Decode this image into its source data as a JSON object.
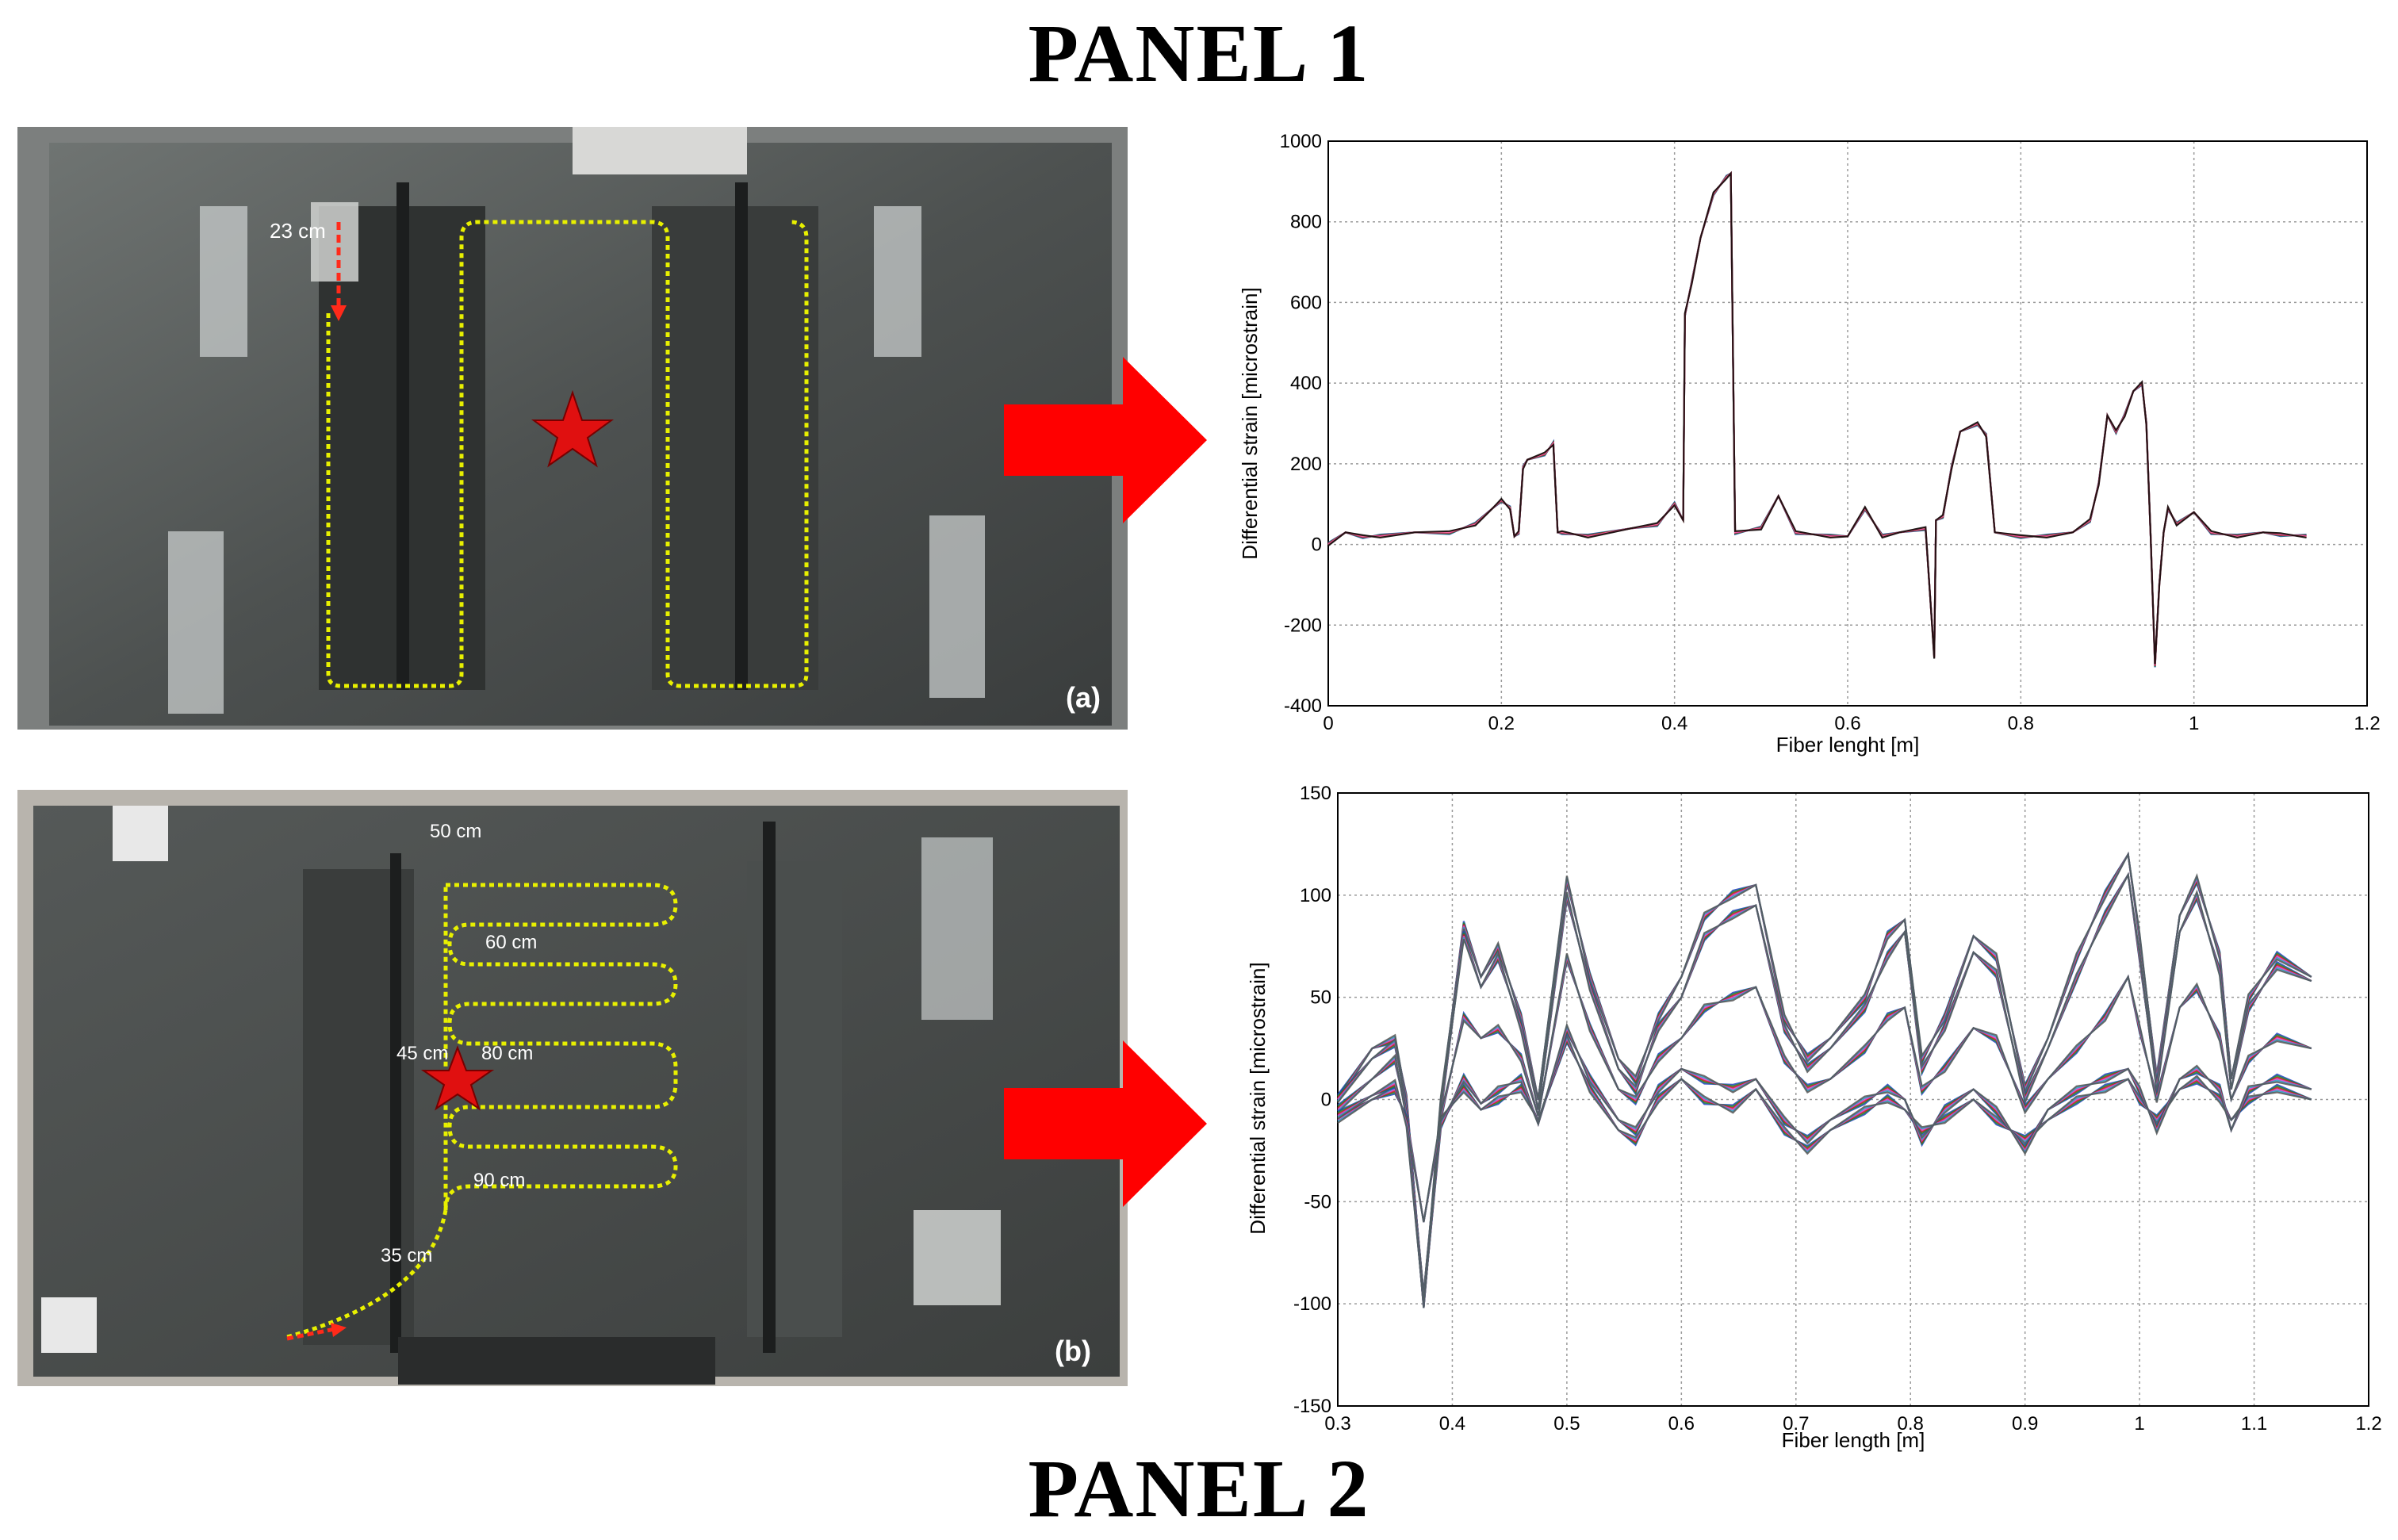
{
  "panels": {
    "panel1_title": "PANEL 1",
    "panel2_title": "PANEL 2"
  },
  "photos": {
    "a": {
      "label": "(a)",
      "annotations": [
        "23 cm"
      ]
    },
    "b": {
      "label": "(b)",
      "annotations": [
        "50 cm",
        "60 cm",
        "45 cm",
        "80 cm",
        "90 cm",
        "35 cm"
      ]
    }
  },
  "colors": {
    "arrow": "#ff0000",
    "fiber": "#e8f000",
    "star": "#e01010"
  },
  "chart_data": [
    {
      "type": "line",
      "title": "",
      "xlabel": "Fiber lenght [m]",
      "ylabel": "Differential strain [microstrain]",
      "xlim": [
        0,
        1.2
      ],
      "ylim": [
        -400,
        1000
      ],
      "xticks": [
        0,
        0.2,
        0.4,
        0.6,
        0.8,
        1,
        1.2
      ],
      "yticks": [
        -400,
        -200,
        0,
        200,
        400,
        600,
        800,
        1000
      ],
      "xtick_labels": [
        "0",
        "0.2",
        "0.4",
        "0.6",
        "0.8",
        "1",
        "1.2"
      ],
      "ytick_labels": [
        "-400",
        "-200",
        "0",
        "200",
        "400",
        "600",
        "800",
        "1000"
      ],
      "grid": true,
      "series_colors": [
        "#1f3fbf",
        "#1a8a2a",
        "#c21a1a",
        "#e040d0",
        "#ff8080",
        "#000000"
      ],
      "x": [
        0,
        0.02,
        0.04,
        0.06,
        0.1,
        0.14,
        0.17,
        0.19,
        0.2,
        0.21,
        0.215,
        0.22,
        0.225,
        0.23,
        0.25,
        0.26,
        0.265,
        0.27,
        0.3,
        0.35,
        0.38,
        0.4,
        0.41,
        0.412,
        0.42,
        0.43,
        0.445,
        0.46,
        0.465,
        0.47,
        0.5,
        0.52,
        0.54,
        0.58,
        0.6,
        0.62,
        0.64,
        0.66,
        0.69,
        0.7,
        0.702,
        0.71,
        0.72,
        0.73,
        0.75,
        0.76,
        0.77,
        0.8,
        0.83,
        0.86,
        0.88,
        0.89,
        0.9,
        0.91,
        0.92,
        0.93,
        0.94,
        0.945,
        0.95,
        0.955,
        0.96,
        0.965,
        0.97,
        0.98,
        1.0,
        1.02,
        1.05,
        1.08,
        1.1,
        1.13
      ],
      "values": [
        0,
        30,
        20,
        20,
        30,
        30,
        50,
        90,
        110,
        90,
        20,
        30,
        190,
        210,
        225,
        250,
        30,
        30,
        20,
        40,
        50,
        100,
        60,
        570,
        650,
        760,
        870,
        910,
        920,
        30,
        40,
        120,
        30,
        20,
        20,
        90,
        20,
        30,
        40,
        -280,
        60,
        70,
        190,
        280,
        300,
        270,
        30,
        20,
        20,
        30,
        60,
        150,
        320,
        280,
        320,
        380,
        400,
        300,
        20,
        -300,
        -100,
        30,
        90,
        50,
        80,
        30,
        20,
        30,
        25,
        20
      ]
    },
    {
      "type": "line",
      "title": "",
      "xlabel": "Fiber length [m]",
      "ylabel": "Differential strain [microstrain]",
      "xlim": [
        0.3,
        1.2
      ],
      "ylim": [
        -150,
        150
      ],
      "xticks": [
        0.3,
        0.4,
        0.5,
        0.6,
        0.7,
        0.8,
        0.9,
        1,
        1.1,
        1.2
      ],
      "yticks": [
        -150,
        -100,
        -50,
        0,
        50,
        100,
        150
      ],
      "xtick_labels": [
        "0.3",
        "0.4",
        "0.5",
        "0.6",
        "0.7",
        "0.8",
        "0.9",
        "1",
        "1.1",
        "1.2"
      ],
      "ytick_labels": [
        "-150",
        "-100",
        "-50",
        "0",
        "50",
        "100",
        "150"
      ],
      "grid": true,
      "series_colors": [
        "#1f3fbf",
        "#1a8a2a",
        "#c21a1a",
        "#e040d0",
        "#2aa0c0",
        "#555555"
      ],
      "x": [
        0.3,
        0.33,
        0.35,
        0.36,
        0.375,
        0.39,
        0.41,
        0.425,
        0.44,
        0.46,
        0.475,
        0.5,
        0.52,
        0.545,
        0.56,
        0.58,
        0.6,
        0.62,
        0.645,
        0.665,
        0.69,
        0.71,
        0.73,
        0.76,
        0.78,
        0.795,
        0.81,
        0.83,
        0.855,
        0.875,
        0.9,
        0.92,
        0.945,
        0.97,
        0.99,
        1.0,
        1.015,
        1.035,
        1.05,
        1.07,
        1.08,
        1.095,
        1.12,
        1.15
      ],
      "series": [
        {
          "values": [
            0,
            25,
            30,
            0,
            -100,
            0,
            85,
            60,
            75,
            40,
            0,
            108,
            60,
            20,
            10,
            40,
            60,
            90,
            100,
            105,
            40,
            20,
            30,
            50,
            80,
            88,
            20,
            40,
            80,
            70,
            5,
            30,
            70,
            100,
            120,
            80,
            10,
            90,
            108,
            70,
            10,
            50,
            70,
            60
          ]
        },
        {
          "values": [
            0,
            20,
            28,
            -5,
            -102,
            -5,
            80,
            55,
            70,
            35,
            -5,
            100,
            55,
            15,
            5,
            35,
            50,
            80,
            90,
            95,
            35,
            15,
            25,
            45,
            70,
            82,
            15,
            35,
            72,
            62,
            0,
            25,
            60,
            90,
            110,
            70,
            5,
            82,
            100,
            62,
            5,
            45,
            65,
            58
          ]
        },
        {
          "values": [
            -5,
            10,
            20,
            -8,
            -95,
            -8,
            40,
            30,
            35,
            20,
            -8,
            70,
            35,
            5,
            0,
            20,
            30,
            45,
            50,
            55,
            20,
            5,
            10,
            25,
            40,
            45,
            5,
            15,
            35,
            30,
            -5,
            10,
            25,
            40,
            60,
            35,
            0,
            45,
            55,
            30,
            0,
            20,
            30,
            25
          ]
        },
        {
          "values": [
            -10,
            0,
            5,
            -10,
            -60,
            -10,
            5,
            -5,
            0,
            5,
            -10,
            30,
            5,
            -15,
            -20,
            0,
            10,
            0,
            -5,
            5,
            -15,
            -25,
            -15,
            -5,
            0,
            -5,
            -15,
            -10,
            0,
            -10,
            -20,
            -10,
            0,
            5,
            10,
            0,
            -10,
            5,
            10,
            0,
            -10,
            0,
            5,
            0
          ]
        },
        {
          "values": [
            -8,
            2,
            8,
            -12,
            -100,
            -12,
            10,
            -2,
            5,
            10,
            -12,
            35,
            10,
            -10,
            -15,
            5,
            15,
            10,
            5,
            10,
            -10,
            -20,
            -10,
            0,
            5,
            0,
            -20,
            -5,
            5,
            -5,
            -25,
            -5,
            5,
            10,
            15,
            5,
            -15,
            10,
            15,
            5,
            -15,
            5,
            10,
            5
          ]
        }
      ]
    }
  ]
}
